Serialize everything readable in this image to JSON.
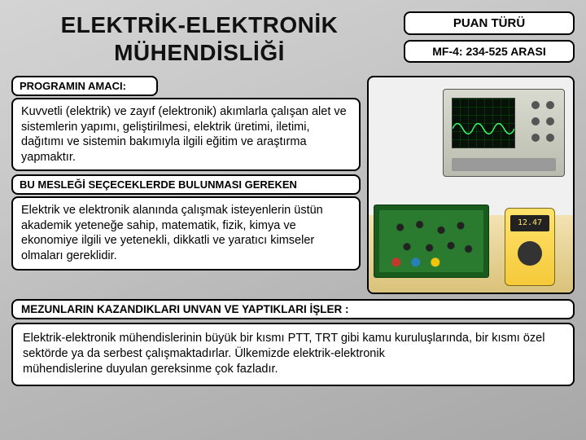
{
  "title_line1": "ELEKTRİK-ELEKTRONİK",
  "title_line2": "MÜHENDİSLİĞİ",
  "score": {
    "label": "PUAN TÜRÜ",
    "value": "MF-4: 234-525 ARASI"
  },
  "sections": {
    "purpose": {
      "label": "PROGRAMIN AMACI:",
      "text": "Kuvvetli (elektrik) ve zayıf (elektronik) akımlarla çalışan alet ve sistemlerin yapımı, geliştirilmesi, elektrik üretimi, iletimi, dağıtımı ve sistemin bakımıyla ilgili eğitim ve araştırma yapmaktır."
    },
    "traits": {
      "label": "BU MESLEĞİ SEÇECEKLERDE BULUNMASI GEREKEN",
      "text": "Elektrik ve elektronik alanında çalışmak isteyenlerin üstün akademik yeteneğe sahip, matematik, fizik, kimya ve ekonomiye ilgili ve yetenekli, dikkatli ve yaratıcı kimseler olmaları gereklidir."
    },
    "graduates": {
      "label": "MEZUNLARIN KAZANDIKLARI UNVAN VE YAPTIKLARI İŞLER :",
      "text": "Elektrik-elektronik mühendislerinin büyük bir kısmı PTT, TRT gibi kamu kuruluşlarında, bir kısmı özel sektörde ya da serbest çalışmaktadırlar. Ülkemizde elektrik-elektronik\nmühendislerine duyulan gereksinme çok fazladır."
    }
  },
  "image": {
    "meter_reading": "12.47"
  },
  "colors": {
    "text": "#111111",
    "box_bg": "#ffffff",
    "box_border": "#000000",
    "page_bg_from": "#d4d4d4",
    "page_bg_to": "#a8a8a8",
    "board_green": "#2a7a2f",
    "meter_yellow": "#ffe36b"
  }
}
